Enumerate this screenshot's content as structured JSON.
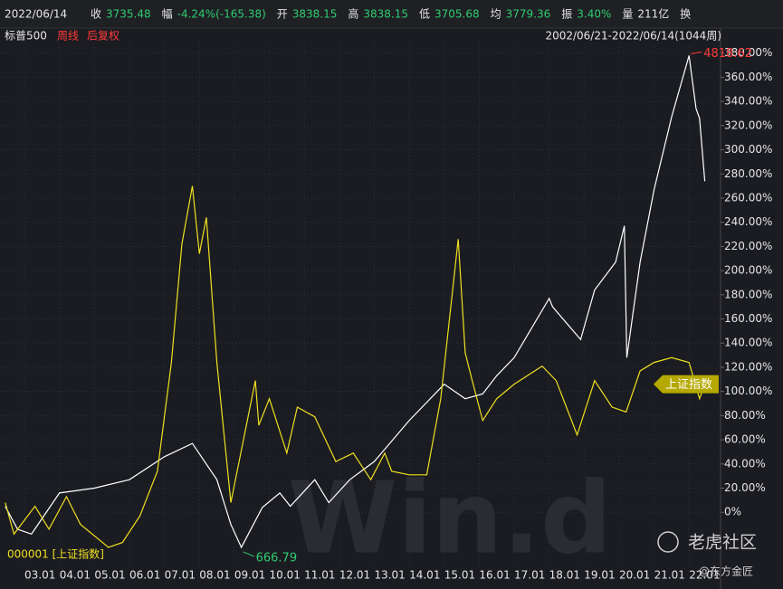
{
  "header": {
    "date": "2022/06/14",
    "fields": [
      {
        "label": "收",
        "value": "3735.48"
      },
      {
        "label": "幅",
        "value": "-4.24%(-165.38)"
      },
      {
        "label": "开",
        "value": "3838.15"
      },
      {
        "label": "高",
        "value": "3838.15"
      },
      {
        "label": "低",
        "value": "3705.68"
      },
      {
        "label": "均",
        "value": "3779.36"
      },
      {
        "label": "振",
        "value": "3.40%"
      },
      {
        "label": "量",
        "value": "211亿"
      }
    ],
    "last": "换",
    "period": "周线",
    "adjust": "后复权",
    "range": "2002/06/21-2022/06/14(1044周)"
  },
  "chart_data": {
    "type": "line",
    "grid": true,
    "legend_label": "000001 [上证指数]",
    "annotations": [
      {
        "text": "4818.62",
        "color": "#ff3b3b"
      },
      {
        "text": "666.79",
        "color": "#2ecc71"
      }
    ],
    "xlim": [
      2002.3,
      2022.9
    ],
    "xticks": [
      {
        "value": 2003,
        "label": "03.01"
      },
      {
        "value": 2004,
        "label": "04.01"
      },
      {
        "value": 2005,
        "label": "05.01"
      },
      {
        "value": 2006,
        "label": "06.01"
      },
      {
        "value": 2007,
        "label": "07.01"
      },
      {
        "value": 2008,
        "label": "08.01"
      },
      {
        "value": 2009,
        "label": "09.01"
      },
      {
        "value": 2010,
        "label": "10.01"
      },
      {
        "value": 2011,
        "label": "11.01"
      },
      {
        "value": 2012,
        "label": "12.01"
      },
      {
        "value": 2013,
        "label": "13.01"
      },
      {
        "value": 2014,
        "label": "14.01"
      },
      {
        "value": 2015,
        "label": "15.01"
      },
      {
        "value": 2016,
        "label": "16.01"
      },
      {
        "value": 2017,
        "label": "17.01"
      },
      {
        "value": 2018,
        "label": "18.01"
      },
      {
        "value": 2019,
        "label": "19.01"
      },
      {
        "value": 2020,
        "label": "20.01"
      },
      {
        "value": 2021,
        "label": "21.01"
      },
      {
        "value": 2022,
        "label": "22.01"
      }
    ],
    "ylim": [
      -44,
      388
    ],
    "yticks": [
      {
        "value": 0,
        "label": "0%"
      },
      {
        "value": 20,
        "label": "20.00%"
      },
      {
        "value": 40,
        "label": "40.00%"
      },
      {
        "value": 60,
        "label": "60.00%"
      },
      {
        "value": 80,
        "label": "80.00%"
      },
      {
        "value": 100,
        "label": "100.00%"
      },
      {
        "value": 120,
        "label": "120.00%"
      },
      {
        "value": 140,
        "label": "140.00%"
      },
      {
        "value": 160,
        "label": "160.00%"
      },
      {
        "value": 180,
        "label": "180.00%"
      },
      {
        "value": 200,
        "label": "200.00%"
      },
      {
        "value": 220,
        "label": "220.00%"
      },
      {
        "value": 240,
        "label": "240.00%"
      },
      {
        "value": 260,
        "label": "260.00%"
      },
      {
        "value": 280,
        "label": "280.00%"
      },
      {
        "value": 300,
        "label": "300.00%"
      },
      {
        "value": 320,
        "label": "320.00%"
      },
      {
        "value": 340,
        "label": "340.00%"
      },
      {
        "value": 360,
        "label": "360.00%"
      },
      {
        "value": 380,
        "label": "380.00%"
      }
    ],
    "series": [
      {
        "name": "标普500",
        "color": "#ffffff",
        "x": [
          2002.45,
          2002.8,
          2003.2,
          2004.0,
          2005.0,
          2006.0,
          2007.0,
          2007.8,
          2008.5,
          2008.9,
          2009.2,
          2009.8,
          2010.3,
          2010.6,
          2011.3,
          2011.7,
          2012.3,
          2013.0,
          2014.0,
          2015.0,
          2015.6,
          2016.1,
          2016.5,
          2017.0,
          2018.0,
          2018.1,
          2018.9,
          2019.3,
          2019.9,
          2020.15,
          2020.22,
          2020.6,
          2021.0,
          2021.5,
          2022.0,
          2022.2,
          2022.3,
          2022.45
        ],
        "values": [
          5,
          -14,
          -18,
          16,
          20,
          27,
          46,
          57,
          27,
          -10,
          -29,
          4,
          16,
          5,
          27,
          8,
          27,
          42,
          76,
          106,
          94,
          98,
          113,
          128,
          177,
          170,
          143,
          184,
          207,
          237,
          128,
          207,
          267,
          327,
          378,
          334,
          326,
          274
        ]
      },
      {
        "name": "上证指数",
        "color": "#f0e020",
        "x": [
          2002.45,
          2002.7,
          2003.3,
          2003.7,
          2004.2,
          2004.6,
          2005.4,
          2005.8,
          2006.3,
          2006.8,
          2007.2,
          2007.5,
          2007.8,
          2008.0,
          2008.2,
          2008.5,
          2008.9,
          2009.6,
          2009.7,
          2010.0,
          2010.5,
          2010.8,
          2011.3,
          2011.9,
          2012.4,
          2012.9,
          2013.3,
          2013.5,
          2014.0,
          2014.5,
          2014.9,
          2015.4,
          2015.6,
          2015.8,
          2016.1,
          2016.5,
          2017.0,
          2017.8,
          2018.2,
          2018.8,
          2019.3,
          2019.8,
          2020.2,
          2020.6,
          2021.0,
          2021.5,
          2022.0,
          2022.3,
          2022.45
        ],
        "values": [
          8,
          -18,
          5,
          -14,
          13,
          -10,
          -29,
          -25,
          -3,
          34,
          124,
          222,
          270,
          214,
          244,
          124,
          8,
          109,
          72,
          94,
          49,
          87,
          79,
          42,
          49,
          27,
          49,
          34,
          31,
          31,
          94,
          226,
          132,
          109,
          76,
          94,
          106,
          121,
          109,
          64,
          109,
          87,
          83,
          117,
          124,
          128,
          124,
          94,
          106
        ]
      }
    ]
  }
}
